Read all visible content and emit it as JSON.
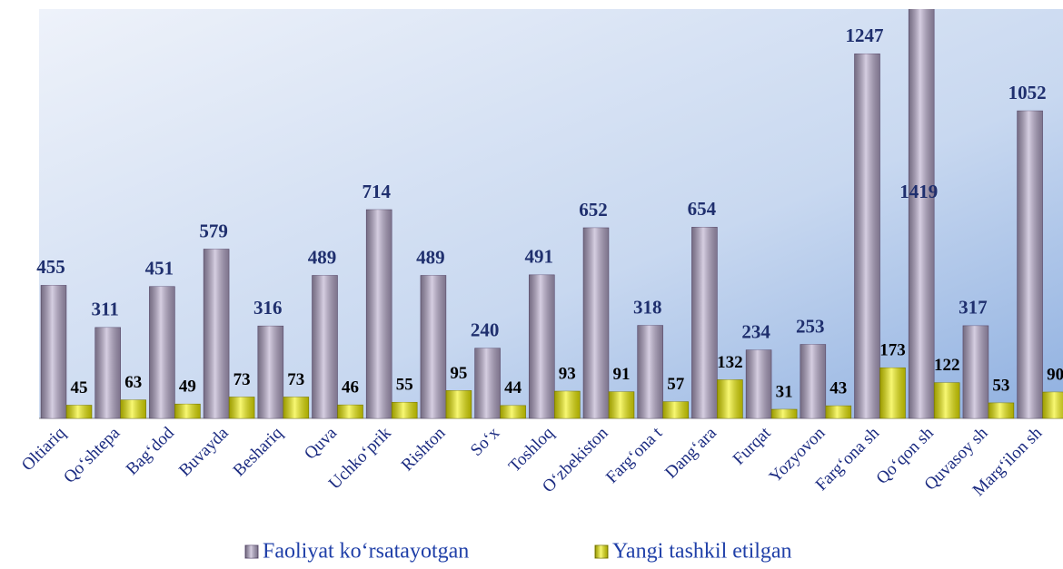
{
  "chart_data": {
    "type": "bar",
    "categories": [
      "Oltiariq",
      "Qo‘shtepa",
      "Bag‘dod",
      "Buvayda",
      "Beshariq",
      "Quva",
      "Uchko‘prik",
      "Rishton",
      "So‘x",
      "Toshloq",
      "O‘zbekiston",
      "Farg‘ona t",
      "Dang‘ara",
      "Furqat",
      "Yozyovon",
      "Farg‘ona sh",
      "Qo‘qon sh",
      "Quvasoy sh",
      "Marg‘ilon sh"
    ],
    "series": [
      {
        "name": "Faoliyat ko‘rsatayotgan",
        "color": "#b4a6c9",
        "values": [
          455,
          311,
          451,
          579,
          316,
          489,
          714,
          489,
          240,
          491,
          652,
          318,
          654,
          234,
          253,
          1247,
          1419,
          317,
          1052
        ]
      },
      {
        "name": "Yangi tashkil etilgan",
        "color": "#f2f200",
        "values": [
          45,
          63,
          49,
          73,
          73,
          46,
          55,
          95,
          44,
          93,
          91,
          57,
          132,
          31,
          43,
          173,
          122,
          53,
          90
        ]
      }
    ],
    "ylim": [
      0,
      1400
    ]
  }
}
